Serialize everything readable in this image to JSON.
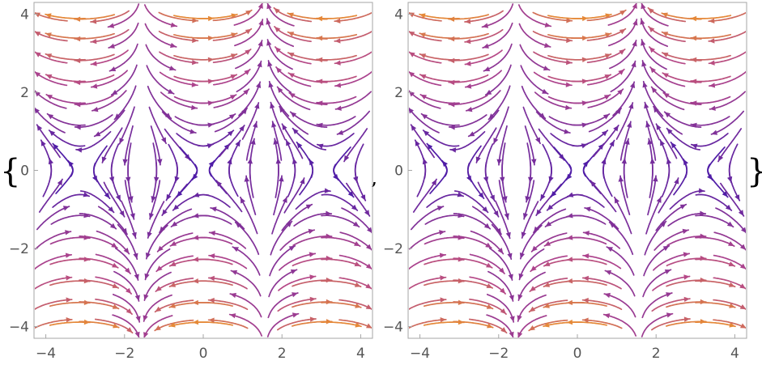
{
  "notation": {
    "open_brace": "{",
    "separator": ",",
    "close_brace": "}"
  },
  "chart_data": [
    {
      "type": "stream",
      "title": "",
      "xlabel": "",
      "ylabel": "",
      "xlim": [
        -4.3,
        4.3
      ],
      "ylim": [
        -4.3,
        4.3
      ],
      "x_ticks": [
        -4,
        -2,
        0,
        2,
        4
      ],
      "y_ticks": [
        -4,
        -2,
        0,
        2,
        4
      ],
      "x_tick_labels": [
        "−4",
        "−2",
        "0",
        "2",
        "4"
      ],
      "y_tick_labels": [
        "−4",
        "−2",
        "0",
        "2",
        "4"
      ],
      "grid": false,
      "field": {
        "u": "y*cos(x)",
        "v": "sin(x)"
      },
      "color_scale": {
        "by": "speed",
        "low": "#2f10b0",
        "mid": "#b2458b",
        "high": "#f7a11a"
      }
    },
    {
      "type": "stream",
      "title": "",
      "xlabel": "",
      "ylabel": "",
      "xlim": [
        -4.3,
        4.3
      ],
      "ylim": [
        -4.3,
        4.3
      ],
      "x_ticks": [
        -4,
        -2,
        0,
        2,
        4
      ],
      "y_ticks": [
        -4,
        -2,
        0,
        2,
        4
      ],
      "x_tick_labels": [
        "−4",
        "−2",
        "0",
        "2",
        "4"
      ],
      "y_tick_labels": [
        "−4",
        "−2",
        "0",
        "2",
        "4"
      ],
      "grid": false,
      "field": {
        "u": "y*cos(x)",
        "v": "sin(x)"
      },
      "color_scale": {
        "by": "speed",
        "low": "#2f10b0",
        "mid": "#b2458b",
        "high": "#f7a11a"
      }
    }
  ]
}
